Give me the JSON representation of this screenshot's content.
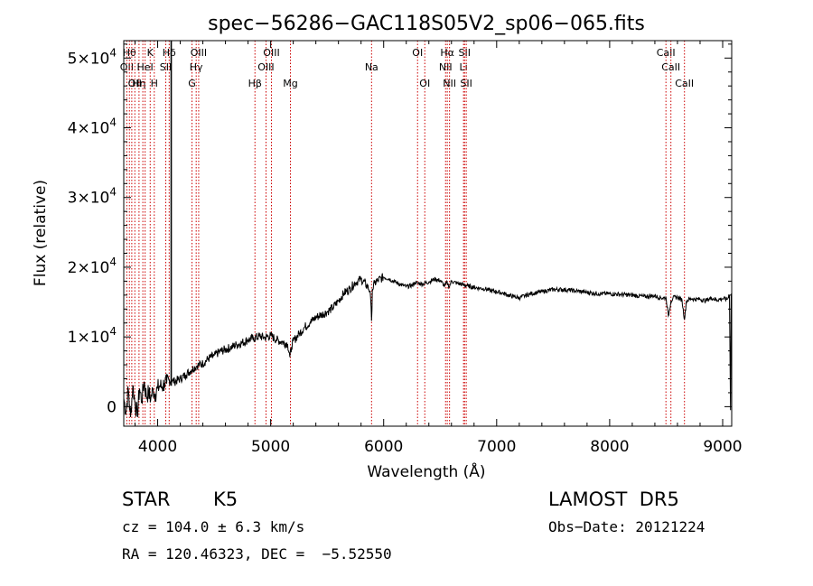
{
  "chart_data": {
    "type": "line",
    "title": "spec−56286−GAC118S05V2_sp06−065.fits",
    "xlabel": "Wavelength (Å)",
    "ylabel": "Flux (relative)",
    "xlim": [
      3700,
      9080
    ],
    "ylim": [
      -2800,
      52500
    ],
    "x_ticks": [
      4000,
      5000,
      6000,
      7000,
      8000,
      9000
    ],
    "y_ticks": [
      {
        "value": 0,
        "mant": "0",
        "exp": ""
      },
      {
        "value": 10000,
        "mant": "1×10",
        "exp": "4"
      },
      {
        "value": 20000,
        "mant": "2×10",
        "exp": "4"
      },
      {
        "value": 30000,
        "mant": "3×10",
        "exp": "4"
      },
      {
        "value": 40000,
        "mant": "4×10",
        "exp": "4"
      },
      {
        "value": 50000,
        "mant": "5×10",
        "exp": "4"
      }
    ],
    "grid": false,
    "series": [
      {
        "x": [
          3700,
          3720,
          3740,
          3760,
          3780,
          3800,
          3820,
          3840,
          3860,
          3880,
          3900,
          3920,
          3940,
          3960,
          3980,
          4000,
          4020,
          4040,
          4060,
          4080,
          4100,
          4110,
          4120,
          4130,
          4150,
          4200,
          4250,
          4300,
          4350,
          4400,
          4450,
          4500,
          4550,
          4600,
          4650,
          4700,
          4750,
          4800,
          4850,
          4900,
          4950,
          5000,
          5050,
          5100,
          5150,
          5170,
          5185,
          5200,
          5250,
          5300,
          5350,
          5400,
          5450,
          5500,
          5550,
          5600,
          5650,
          5700,
          5750,
          5800,
          5850,
          5880,
          5893,
          5900,
          5920,
          5950,
          6000,
          6050,
          6100,
          6150,
          6200,
          6250,
          6280,
          6300,
          6350,
          6400,
          6450,
          6500,
          6540,
          6563,
          6580,
          6600,
          6650,
          6700,
          6750,
          6800,
          6850,
          6900,
          6950,
          7000,
          7050,
          7100,
          7150,
          7200,
          7250,
          7300,
          7400,
          7500,
          7600,
          7700,
          7800,
          7900,
          8000,
          8100,
          8200,
          8300,
          8400,
          8450,
          8500,
          8520,
          8542,
          8560,
          8600,
          8640,
          8662,
          8680,
          8720,
          8760,
          8800,
          8850,
          8900,
          8950,
          9000,
          9040,
          9060,
          9070,
          9075
        ],
        "y": [
          1200,
          -800,
          2500,
          -1500,
          3000,
          500,
          -1200,
          2600,
          800,
          3600,
          1500,
          2000,
          1200,
          2500,
          1800,
          2600,
          3000,
          2800,
          3400,
          3300,
          3800,
          3600,
          3900,
          3700,
          3600,
          4000,
          4600,
          5300,
          5900,
          6200,
          6900,
          7300,
          7900,
          8200,
          8500,
          8900,
          9200,
          9600,
          9800,
          10100,
          9900,
          10200,
          9600,
          9300,
          9000,
          7100,
          8600,
          9400,
          10400,
          11400,
          12100,
          12800,
          13200,
          13600,
          14200,
          15200,
          16300,
          16900,
          17800,
          18300,
          17400,
          16600,
          12300,
          16800,
          17700,
          18100,
          18600,
          18300,
          17900,
          17500,
          17200,
          17400,
          17800,
          17700,
          17600,
          17900,
          18300,
          18100,
          17300,
          17800,
          17200,
          18000,
          17700,
          17500,
          17300,
          17100,
          17000,
          16900,
          16600,
          16500,
          16300,
          16000,
          15800,
          15600,
          15900,
          16200,
          16500,
          16800,
          16800,
          16600,
          16400,
          16200,
          16200,
          16100,
          16000,
          15800,
          15900,
          15600,
          15600,
          13000,
          15100,
          15600,
          15700,
          15300,
          12500,
          15200,
          15500,
          15400,
          15400,
          15200,
          15600,
          15300,
          15500,
          15400,
          16000,
          -500,
          16200
        ]
      }
    ],
    "spike": {
      "x": 4120,
      "y_bottom": 3000,
      "y_top": 52500
    },
    "lines": [
      {
        "wl": 3727,
        "label": "OII",
        "row": 1
      },
      {
        "wl": 3750,
        "label": "Hθ",
        "row": 0
      },
      {
        "wl": 3771,
        "label": "",
        "row": 0
      },
      {
        "wl": 3798,
        "label": "OII",
        "row": 2
      },
      {
        "wl": 3835,
        "label": "Hη",
        "row": 2
      },
      {
        "wl": 3869,
        "label": "",
        "row": 0
      },
      {
        "wl": 3889,
        "label": "HeI",
        "row": 1
      },
      {
        "wl": 3934,
        "label": "K",
        "row": 0
      },
      {
        "wl": 3970,
        "label": "H",
        "row": 2
      },
      {
        "wl": 4072,
        "label": "SII",
        "row": 1
      },
      {
        "wl": 4102,
        "label": "Hδ",
        "row": 0
      },
      {
        "wl": 4304,
        "label": "G",
        "row": 2
      },
      {
        "wl": 4341,
        "label": "Hγ",
        "row": 1
      },
      {
        "wl": 4363,
        "label": "OIII",
        "row": 0
      },
      {
        "wl": 4861,
        "label": "Hβ",
        "row": 2
      },
      {
        "wl": 4959,
        "label": "OIII",
        "row": 1
      },
      {
        "wl": 5007,
        "label": "OIII",
        "row": 0
      },
      {
        "wl": 5175,
        "label": "Mg",
        "row": 2
      },
      {
        "wl": 5893,
        "label": "Na",
        "row": 1
      },
      {
        "wl": 6300,
        "label": "OI",
        "row": 0
      },
      {
        "wl": 6364,
        "label": "OI",
        "row": 2
      },
      {
        "wl": 6548,
        "label": "NII",
        "row": 1
      },
      {
        "wl": 6563,
        "label": "Hα",
        "row": 0
      },
      {
        "wl": 6583,
        "label": "NII",
        "row": 2
      },
      {
        "wl": 6707,
        "label": "Li",
        "row": 1
      },
      {
        "wl": 6716,
        "label": "SII",
        "row": 0
      },
      {
        "wl": 6731,
        "label": "SII",
        "row": 2
      },
      {
        "wl": 8498,
        "label": "CaII",
        "row": 0
      },
      {
        "wl": 8542,
        "label": "CaII",
        "row": 1
      },
      {
        "wl": 8662,
        "label": "CaII",
        "row": 2
      }
    ]
  },
  "info": {
    "object_class": "STAR",
    "subclass": "K5",
    "survey": "LAMOST  DR5",
    "redshift": "cz = 104.0 ± 6.3 km/s",
    "obs_date": "Obs−Date: 20121224",
    "coords": "RA = 120.46323, DEC =  −5.52550"
  },
  "colors": {
    "spectrum": "#000000",
    "line_markers": "#cc0000",
    "axes": "#000000",
    "background": "#ffffff"
  }
}
